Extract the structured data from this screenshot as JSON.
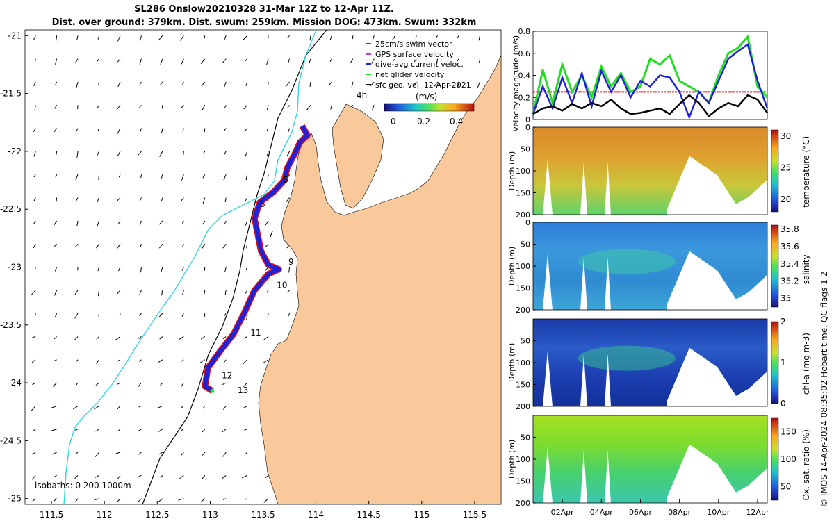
{
  "title": {
    "line1": "SL286 Onslow20210328 31-Mar 12Z to 12-Apr 11Z.",
    "line2": "Dist. over ground: 379km. Dist. swum: 259km. Mission DOG: 473km. Swum: 332km"
  },
  "colors": {
    "land": "#f9c89b",
    "swim": "#e81010",
    "gps": "#cc33cc",
    "dive": "#1e22d6",
    "net": "#22dd22",
    "coast200": "#33d6e0",
    "vel_red": "#ee2222"
  },
  "chart_data": [
    {
      "type": "map",
      "name": "glider track map",
      "xlim": [
        111.25,
        115.75
      ],
      "ylim": [
        -25.05,
        -20.95
      ],
      "x_ticks": [
        "111.5",
        "112",
        "112.5",
        "113",
        "113.5",
        "114",
        "114.5",
        "115",
        "115.5"
      ],
      "y_ticks": [
        "-21",
        "-21.5",
        "-22",
        "-22.5",
        "-23",
        "-23.5",
        "-24",
        "-24.5",
        "-25"
      ],
      "legend": [
        {
          "label": "25cm/s swim vector",
          "color": "#e81010"
        },
        {
          "label": "GPS surface velocity",
          "color": "#cc33cc"
        },
        {
          "label": "dive-avg current veloc.",
          "color": "#1e22d6"
        },
        {
          "label": "net glider velocity",
          "color": "#22dd22"
        },
        {
          "label": "sfc geo. vel. 12-Apr-2021",
          "color": "#000000"
        }
      ],
      "colorbar": {
        "label": "(m/s)",
        "ticks": [
          "0",
          "0.2",
          "0.4"
        ],
        "range": [
          0,
          0.5
        ]
      },
      "isobath_label": "isobaths: 0   200  1000m",
      "elapsed_label": "4h",
      "track": [
        [
          113.87,
          -21.78
        ],
        [
          113.92,
          -21.86
        ],
        [
          113.85,
          -21.92
        ],
        [
          113.8,
          -22.02
        ],
        [
          113.73,
          -22.14
        ],
        [
          113.7,
          -22.25
        ],
        [
          113.6,
          -22.35
        ],
        [
          113.47,
          -22.44
        ],
        [
          113.42,
          -22.58
        ],
        [
          113.45,
          -22.72
        ],
        [
          113.48,
          -22.86
        ],
        [
          113.55,
          -22.98
        ],
        [
          113.65,
          -23.02
        ],
        [
          113.55,
          -23.06
        ],
        [
          113.42,
          -23.2
        ],
        [
          113.32,
          -23.4
        ],
        [
          113.22,
          -23.58
        ],
        [
          113.1,
          -23.72
        ],
        [
          112.98,
          -23.87
        ],
        [
          112.95,
          -24.03
        ],
        [
          113.02,
          -24.07
        ]
      ],
      "day_labels": [
        {
          "day": "5",
          "lon": 113.69,
          "lat": -22.27
        },
        {
          "day": "6",
          "lon": 113.47,
          "lat": -22.48
        },
        {
          "day": "7",
          "lon": 113.55,
          "lat": -22.74
        },
        {
          "day": "9",
          "lon": 113.74,
          "lat": -22.98
        },
        {
          "day": "10",
          "lon": 113.63,
          "lat": -23.18
        },
        {
          "day": "11",
          "lon": 113.38,
          "lat": -23.59
        },
        {
          "day": "12",
          "lon": 113.11,
          "lat": -23.96
        },
        {
          "day": "13",
          "lon": 113.26,
          "lat": -24.09
        }
      ]
    },
    {
      "type": "line",
      "name": "velocity magnitude",
      "ylabel": "velocity magnitude (m/s)",
      "ylim": [
        0,
        0.8
      ],
      "y_ticks": [
        "0",
        "0.2",
        "0.4",
        "0.6",
        "0.8"
      ],
      "x_days": [
        0,
        0.5,
        1,
        1.5,
        2,
        2.5,
        3,
        3.5,
        4,
        4.5,
        5,
        5.5,
        6,
        6.5,
        7,
        7.5,
        8,
        8.5,
        9,
        9.5,
        10,
        10.5,
        11,
        11.5,
        12
      ],
      "series": [
        {
          "name": "net glider velocity",
          "color": "#22dd22",
          "values": [
            0.05,
            0.45,
            0.15,
            0.5,
            0.25,
            0.4,
            0.2,
            0.48,
            0.3,
            0.42,
            0.25,
            0.3,
            0.55,
            0.5,
            0.58,
            0.35,
            0.3,
            0.25,
            0.15,
            0.4,
            0.6,
            0.65,
            0.75,
            0.3,
            0.2
          ]
        },
        {
          "name": "dive-avg current veloc.",
          "color": "#1e22d6",
          "values": [
            0.05,
            0.3,
            0.1,
            0.38,
            0.15,
            0.42,
            0.12,
            0.44,
            0.25,
            0.4,
            0.2,
            0.35,
            0.3,
            0.4,
            0.38,
            0.25,
            0.02,
            0.25,
            0.15,
            0.35,
            0.55,
            0.62,
            0.68,
            0.35,
            0.1
          ]
        },
        {
          "name": "swim",
          "color": "#000000",
          "values": [
            0.05,
            0.1,
            0.12,
            0.08,
            0.14,
            0.1,
            0.15,
            0.12,
            0.18,
            0.1,
            0.05,
            0.06,
            0.08,
            0.1,
            0.05,
            0.14,
            0.22,
            0.15,
            0.03,
            0.1,
            0.15,
            0.12,
            0.22,
            0.18,
            0.06
          ]
        }
      ],
      "threshold": 0.25
    },
    {
      "type": "heatmap",
      "name": "temperature",
      "ylabel": "Depth (m)",
      "colorbar_label": "temperature (°C)",
      "colorbar_ticks": [
        "20",
        "25",
        "30"
      ],
      "range": [
        18,
        31
      ],
      "y_ticks": [
        "0",
        "50",
        "100",
        "150",
        "200"
      ]
    },
    {
      "type": "heatmap",
      "name": "salinity",
      "ylabel": "Depth (m)",
      "colorbar_label": "salinity",
      "colorbar_ticks": [
        "35",
        "35.2",
        "35.4",
        "35.6",
        "35.8"
      ],
      "range": [
        34.9,
        35.85
      ],
      "y_ticks": [
        "0",
        "50",
        "100",
        "150",
        "200"
      ]
    },
    {
      "type": "heatmap",
      "name": "chlorophyll",
      "ylabel": "Depth (m)",
      "colorbar_label": "chl-a (mg m-3)",
      "colorbar_ticks": [
        "0",
        "1",
        "2"
      ],
      "range": [
        0,
        2
      ],
      "y_ticks": [
        "50",
        "100",
        "150",
        "200"
      ]
    },
    {
      "type": "heatmap",
      "name": "oxygen",
      "ylabel": "Depth (m)",
      "colorbar_label": "Ox. sat. ratio (%)",
      "colorbar_ticks": [
        "50",
        "100",
        "150"
      ],
      "range": [
        25,
        175
      ],
      "y_ticks": [
        "50",
        "100",
        "150",
        "200"
      ],
      "x_ticks": [
        "02Apr",
        "04Apr",
        "06Apr",
        "08Apr",
        "10Apr",
        "12Apr"
      ]
    }
  ],
  "footer": "© IMOS 14-Apr-2024 08:35:02 Hobart time. QC flags 1  2"
}
